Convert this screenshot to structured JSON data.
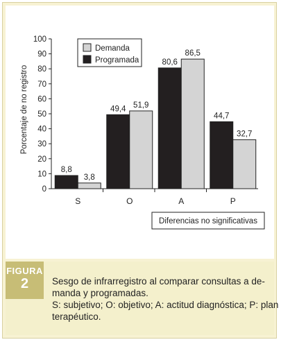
{
  "chart_data": {
    "type": "bar",
    "categories": [
      "S",
      "O",
      "A",
      "P"
    ],
    "series": [
      {
        "name": "Demanda",
        "values": [
          3.8,
          51.9,
          86.5,
          32.7
        ],
        "value_labels": [
          "3,8",
          "51,9",
          "86,5",
          "32,7"
        ],
        "color": "#d4d4d4"
      },
      {
        "name": "Programada",
        "values": [
          8.8,
          49.4,
          80.6,
          44.7
        ],
        "value_labels": [
          "8,8",
          "49,4",
          "80,6",
          "44,7"
        ],
        "color": "#231f20"
      }
    ],
    "ylabel": "Porcentaje de no registro",
    "xlabel": "",
    "ylim": [
      0,
      100
    ],
    "yticks": [
      "0",
      "10",
      "20",
      "30",
      "40",
      "50",
      "60",
      "70",
      "80",
      "90",
      "100"
    ],
    "legend_position": "top-left",
    "annotation": "Diferencias no significativas",
    "grid": false
  },
  "figure": {
    "label": "FIGURA",
    "number": "2",
    "caption_lines": [
      "Sesgo de infrarregistro al comparar consultas a de-",
      "manda y programadas.",
      "S: subjetivo; O: objetivo; A: actitud diagnóstica; P: plan",
      "terapéutico."
    ]
  }
}
